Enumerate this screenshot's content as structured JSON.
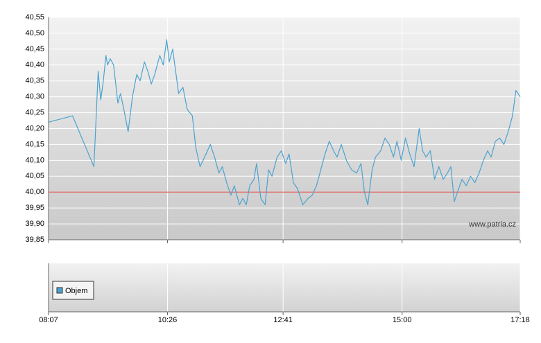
{
  "chart_data": {
    "type": "line",
    "color": "#4aa3d0",
    "x": [
      "08:07",
      "08:35",
      "09:00",
      "09:02",
      "09:05",
      "09:08",
      "09:11",
      "09:14",
      "09:16",
      "09:19",
      "09:23",
      "09:28",
      "09:31",
      "09:35",
      "09:40",
      "09:45",
      "09:50",
      "09:54",
      "09:59",
      "10:03",
      "10:07",
      "10:11",
      "10:17",
      "10:21",
      "10:25",
      "10:28",
      "10:32",
      "10:36",
      "10:39",
      "10:44",
      "10:49",
      "10:55",
      "10:59",
      "11:04",
      "11:11",
      "11:16",
      "11:21",
      "11:26",
      "11:30",
      "11:35",
      "11:40",
      "11:44",
      "11:50",
      "11:54",
      "11:58",
      "12:02",
      "12:07",
      "12:10",
      "12:15",
      "12:20",
      "12:24",
      "12:28",
      "12:34",
      "12:39",
      "12:44",
      "12:48",
      "12:53",
      "12:58",
      "13:04",
      "13:10",
      "13:15",
      "13:20",
      "13:26",
      "13:30",
      "13:35",
      "13:40",
      "13:44",
      "13:49",
      "13:55",
      "14:01",
      "14:07",
      "14:12",
      "14:16",
      "14:20",
      "14:25",
      "14:29",
      "14:35",
      "14:40",
      "14:45",
      "14:50",
      "14:54",
      "14:59",
      "15:04",
      "15:09",
      "15:14",
      "15:20",
      "15:24",
      "15:28",
      "15:33",
      "15:38",
      "15:43",
      "15:48",
      "15:53",
      "15:57",
      "16:01",
      "16:06",
      "16:10",
      "16:15",
      "16:20",
      "16:25",
      "16:30",
      "16:35",
      "16:40",
      "16:44",
      "16:49",
      "16:54",
      "16:59",
      "17:04",
      "17:09",
      "17:13",
      "17:18"
    ],
    "values": [
      40.22,
      40.24,
      40.08,
      40.2,
      40.38,
      40.29,
      40.35,
      40.43,
      40.4,
      40.42,
      40.4,
      40.28,
      40.31,
      40.26,
      40.19,
      40.3,
      40.37,
      40.35,
      40.41,
      40.38,
      40.34,
      40.37,
      40.43,
      40.4,
      40.48,
      40.41,
      40.45,
      40.37,
      40.31,
      40.33,
      40.26,
      40.24,
      40.14,
      40.08,
      40.12,
      40.15,
      40.11,
      40.06,
      40.08,
      40.03,
      39.99,
      40.02,
      39.96,
      39.98,
      39.96,
      40.02,
      40.04,
      40.09,
      39.98,
      39.96,
      40.07,
      40.05,
      40.11,
      40.13,
      40.09,
      40.12,
      40.03,
      40.01,
      39.96,
      39.98,
      39.99,
      40.02,
      40.08,
      40.12,
      40.16,
      40.13,
      40.11,
      40.15,
      40.1,
      40.07,
      40.06,
      40.09,
      40.0,
      39.96,
      40.07,
      40.11,
      40.13,
      40.17,
      40.15,
      40.11,
      40.16,
      40.1,
      40.17,
      40.12,
      40.08,
      40.2,
      40.13,
      40.11,
      40.13,
      40.04,
      40.08,
      40.04,
      40.06,
      40.08,
      39.97,
      40.01,
      40.04,
      40.02,
      40.05,
      40.03,
      40.06,
      40.1,
      40.13,
      40.11,
      40.16,
      40.17,
      40.15,
      40.19,
      40.24,
      40.32,
      40.3
    ],
    "xlim": [
      "08:07",
      "17:18"
    ],
    "xticks": [
      "08:07",
      "10:26",
      "12:41",
      "15:00",
      "17:18"
    ],
    "ylim": [
      39.85,
      40.55
    ],
    "yticks": [
      {
        "value": 39.85,
        "label": "39,85"
      },
      {
        "value": 39.9,
        "label": "39,90"
      },
      {
        "value": 39.95,
        "label": "39,95"
      },
      {
        "value": 40.0,
        "label": "40,00"
      },
      {
        "value": 40.05,
        "label": "40,05"
      },
      {
        "value": 40.1,
        "label": "40,10"
      },
      {
        "value": 40.15,
        "label": "40,15"
      },
      {
        "value": 40.2,
        "label": "40,20"
      },
      {
        "value": 40.25,
        "label": "40,25"
      },
      {
        "value": 40.3,
        "label": "40,30"
      },
      {
        "value": 40.35,
        "label": "40,35"
      },
      {
        "value": 40.4,
        "label": "40,40"
      },
      {
        "value": 40.45,
        "label": "40,45"
      },
      {
        "value": 40.5,
        "label": "40,50"
      },
      {
        "value": 40.55,
        "label": "40,55"
      }
    ],
    "grid": true,
    "reference_line": 40.0,
    "reference_color": "#e06060",
    "watermark": "www.patria.cz",
    "volume_legend": "Objem",
    "volume_color": "#4aa3d0"
  }
}
